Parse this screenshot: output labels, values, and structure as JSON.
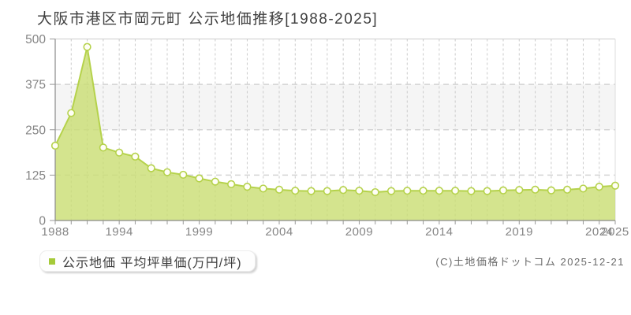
{
  "title": "大阪市港区市岡元町 公示地価推移[1988-2025]",
  "legend": {
    "label": "公示地価 平均坪単価(万円/坪)",
    "marker_color": "#a5ca39"
  },
  "copyright": "(C)土地価格ドットコム 2025-12-21",
  "chart_data": {
    "type": "area",
    "title": "大阪市港区市岡元町 公示地価推移[1988-2025]",
    "series_name": "公示地価 平均坪単価(万円/坪)",
    "unit": "万円/坪",
    "x": [
      1988,
      1990,
      1991,
      1992,
      1994,
      1995,
      1996,
      1997,
      1998,
      1999,
      2000,
      2001,
      2002,
      2003,
      2004,
      2005,
      2006,
      2007,
      2008,
      2009,
      2010,
      2011,
      2012,
      2013,
      2014,
      2015,
      2016,
      2017,
      2018,
      2019,
      2020,
      2021,
      2022,
      2023,
      2024,
      2025
    ],
    "values": [
      206,
      296,
      478,
      201,
      187,
      176,
      144,
      133,
      126,
      116,
      107,
      100,
      93,
      88,
      85,
      82,
      81,
      81,
      84,
      82,
      78,
      81,
      82,
      82,
      82,
      82,
      81,
      81,
      83,
      84,
      85,
      83,
      85,
      88,
      93,
      96
    ],
    "ylim": [
      0,
      500
    ],
    "yticks": [
      0,
      125,
      250,
      375,
      500
    ],
    "xticks": [
      {
        "label": "1988",
        "index": 0
      },
      {
        "label": "1994",
        "index": 4
      },
      {
        "label": "1999",
        "index": 9
      },
      {
        "label": "2004",
        "index": 14
      },
      {
        "label": "2009",
        "index": 19
      },
      {
        "label": "2014",
        "index": 24
      },
      {
        "label": "2019",
        "index": 29
      },
      {
        "label": "2024",
        "index": 34
      },
      {
        "label": "2025",
        "index": 35
      }
    ],
    "grid": true,
    "legend_position": "bottom-left",
    "colors": {
      "area_fill": "#c9dd72",
      "line": "#b5d24b",
      "marker_fill": "#fffef6",
      "band_gray": "#f5f5f5",
      "grid": "#cbcbcb",
      "axis": "#8a8a8a",
      "tick_label": "#858585"
    }
  }
}
